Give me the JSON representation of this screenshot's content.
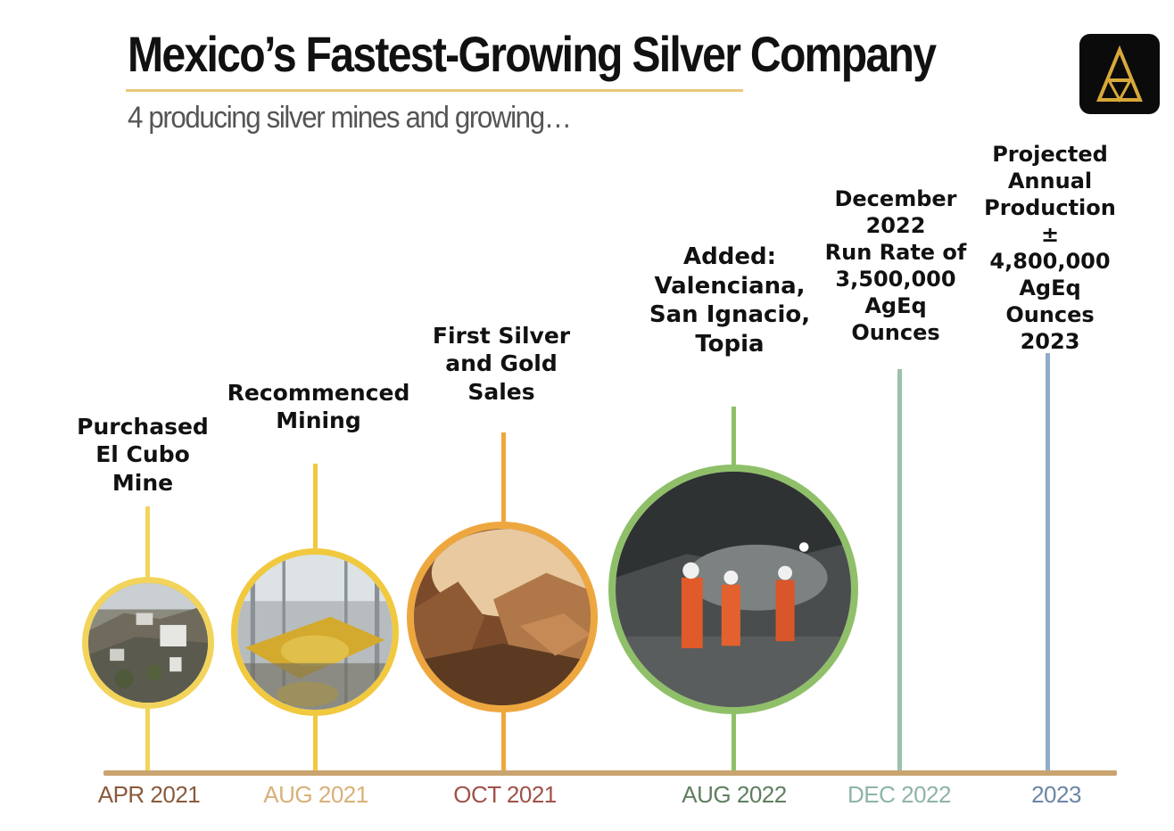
{
  "header": {
    "title": "Mexico’s Fastest-Growing Silver Company",
    "subtitle": "4 producing silver mines and growing…",
    "logo_icon": "triangle-logo-icon"
  },
  "timeline": {
    "axis_color": "#c9a470",
    "events": [
      {
        "date": "APR 2021",
        "label": "Purchased\nEl Cubo\nMine",
        "color": "#f2d45c",
        "date_color": "#8a5a3c",
        "photo": "hillside-town"
      },
      {
        "date": "AUG 2021",
        "label": "Recommenced\nMining",
        "color": "#f1c93f",
        "date_color": "#d9b078",
        "photo": "processing-plant"
      },
      {
        "date": "OCT 2021",
        "label": "First Silver\nand Gold\nSales",
        "color": "#eea73f",
        "date_color": "#a0524a",
        "photo": "underground-rock"
      },
      {
        "date": "AUG 2022",
        "label": "Added:\nValenciana,\nSan Ignacio,\nTopia",
        "color": "#8fc069",
        "date_color": "#5f7e5f",
        "photo": "miners-tunnel"
      },
      {
        "date": "DEC 2022",
        "label": "December\n2022\nRun Rate of\n3,500,000\nAgEq\nOunces",
        "color": "#9dbfae",
        "date_color": "#8fb3aa"
      },
      {
        "date": "2023",
        "label": "Projected\nAnnual\nProduction\n± 4,800,000\nAgEq Ounces\n2023",
        "color": "#8fadc9",
        "date_color": "#6b86a6"
      }
    ]
  }
}
